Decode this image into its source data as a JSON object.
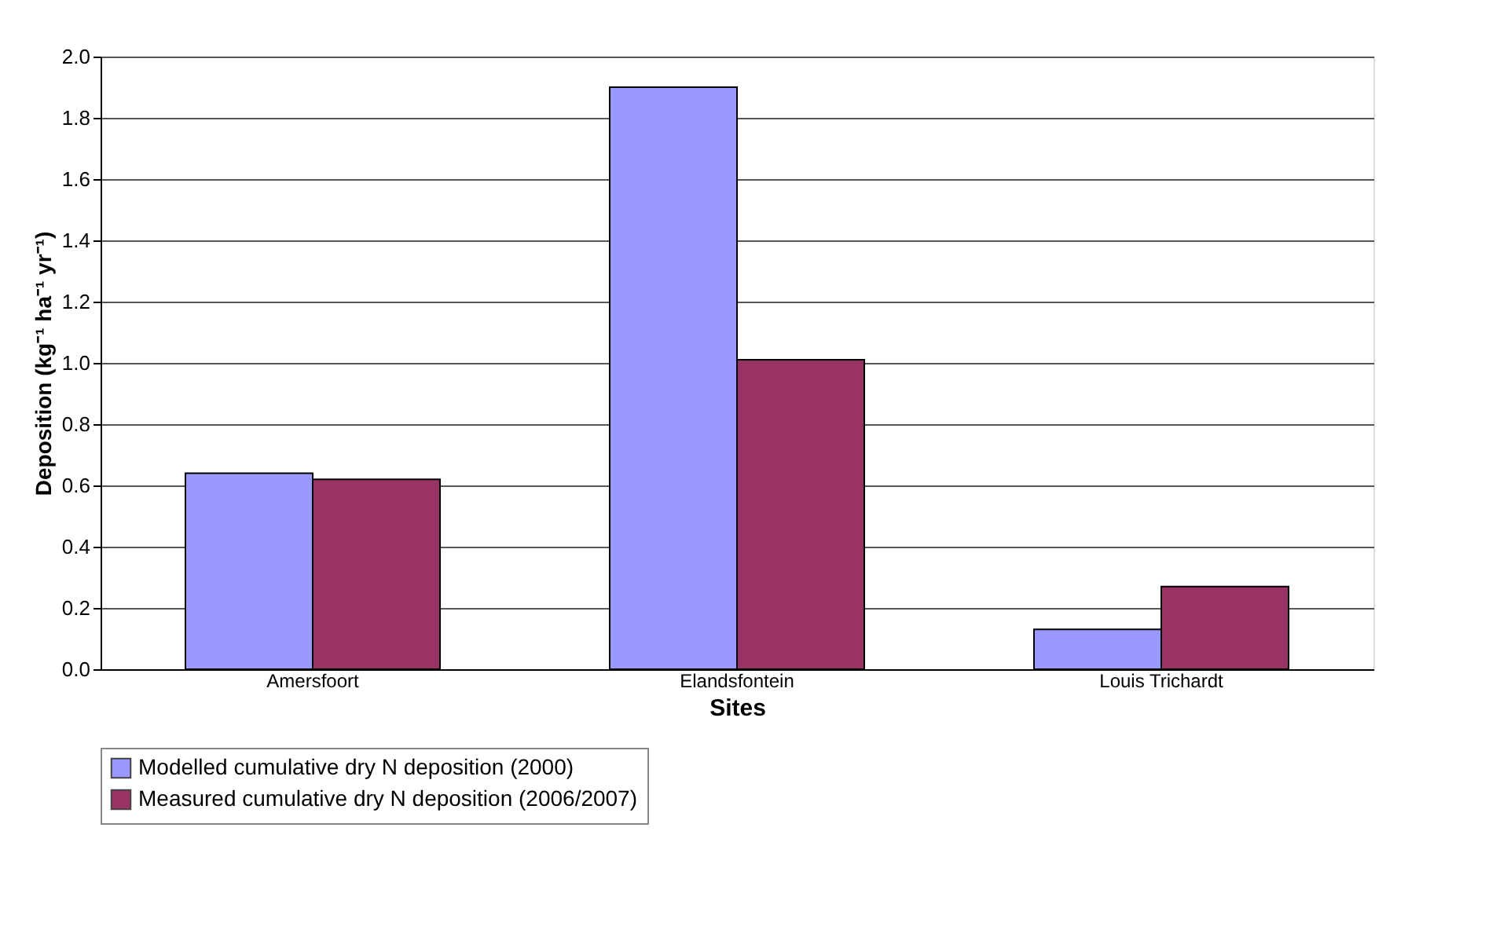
{
  "chart_data": {
    "type": "bar",
    "xlabel": "Sites",
    "ylabel": "Deposition (kg⁻¹ ha⁻¹ yr⁻¹)",
    "categories": [
      "Amersfoort",
      "Elandsfontein",
      "Louis Trichardt"
    ],
    "series": [
      {
        "name": "Modelled cumulative dry N deposition (2000)",
        "color": "#9999ff",
        "values": [
          0.64,
          1.9,
          0.13
        ]
      },
      {
        "name": "Measured cumulative dry N deposition (2006/2007)",
        "color": "#993366",
        "values": [
          0.62,
          1.01,
          0.27
        ]
      }
    ],
    "ylim": [
      0,
      2.0
    ],
    "yticks": [
      {
        "value": 0,
        "label": "0.0"
      },
      0.2,
      0.4,
      0.6,
      0.8,
      {
        "value": 1,
        "label": "1.0"
      },
      1.2,
      1.4,
      1.6,
      1.8,
      {
        "value": 2,
        "label": "2.0"
      }
    ],
    "grid": "y",
    "legend": "bottom"
  }
}
